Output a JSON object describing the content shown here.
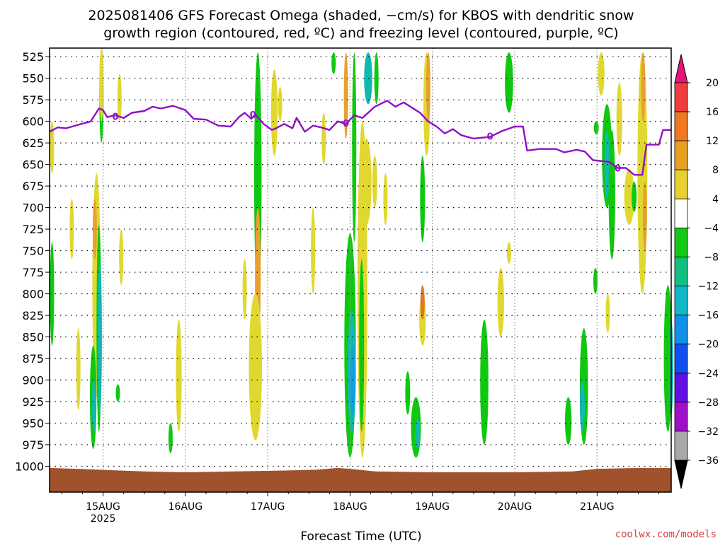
{
  "title_line1": "2025081406 GFS Forecast Omega (shaded, −cm/s) for KBOS with dendritic snow",
  "title_line2": "growth region (contoured, red, ºC) and freezing level (contoured, purple, ºC)",
  "credit": "coolwx.com/models",
  "chart_data": {
    "type": "heatmap",
    "title": "2025081406 GFS Forecast Omega (shaded, −cm/s) for KBOS with dendritic snow growth region (contoured, red, ºC) and freezing level (contoured, purple, ºC)",
    "xlabel": "Forecast Time (UTC)",
    "ylabel": "",
    "x_range_days_since_15AUG": [
      -0.65,
      6.9
    ],
    "x_ticks": [
      {
        "day": 0,
        "label": "15AUG",
        "sub": "2025"
      },
      {
        "day": 1,
        "label": "16AUG",
        "sub": ""
      },
      {
        "day": 2,
        "label": "17AUG",
        "sub": ""
      },
      {
        "day": 3,
        "label": "18AUG",
        "sub": ""
      },
      {
        "day": 4,
        "label": "19AUG",
        "sub": ""
      },
      {
        "day": 5,
        "label": "20AUG",
        "sub": ""
      },
      {
        "day": 6,
        "label": "21AUG",
        "sub": ""
      }
    ],
    "y_axis": "pressure (hPa), inverted",
    "y_range": [
      1030,
      515
    ],
    "y_ticks": [
      525,
      550,
      575,
      600,
      625,
      650,
      675,
      700,
      725,
      750,
      775,
      800,
      825,
      850,
      875,
      900,
      925,
      950,
      975,
      1000
    ],
    "grid": true,
    "colorbar": {
      "labels": [
        20,
        16,
        12,
        8,
        4,
        -4,
        -8,
        -12,
        -16,
        -20,
        -24,
        -28,
        -32,
        -36
      ],
      "colors": [
        "#e8144a",
        "#f03c3c",
        "#f07820",
        "#e8a020",
        "#e8d030",
        "#e8e030",
        "#ffffff",
        "#14c814",
        "#10c050",
        "#10c0a0",
        "#10b8d0",
        "#1088f0",
        "#1040f0",
        "#5010e0",
        "#8010d0",
        "#a010c8",
        "#a8a8a8"
      ],
      "top_arrow": "#e8147a",
      "bottom_arrow": "#000000"
    },
    "freezing_level": {
      "label": "0",
      "color": "#9010c8",
      "points": [
        [
          -0.65,
          612
        ],
        [
          -0.55,
          607
        ],
        [
          -0.45,
          608
        ],
        [
          -0.3,
          604
        ],
        [
          -0.15,
          600
        ],
        [
          -0.05,
          585
        ],
        [
          0.0,
          587
        ],
        [
          0.05,
          595
        ],
        [
          0.15,
          593
        ],
        [
          0.25,
          596
        ],
        [
          0.35,
          590
        ],
        [
          0.5,
          588
        ],
        [
          0.6,
          583
        ],
        [
          0.7,
          585
        ],
        [
          0.85,
          582
        ],
        [
          1.0,
          587
        ],
        [
          1.1,
          597
        ],
        [
          1.25,
          598
        ],
        [
          1.4,
          605
        ],
        [
          1.55,
          606
        ],
        [
          1.65,
          595
        ],
        [
          1.72,
          590
        ],
        [
          1.8,
          597
        ],
        [
          1.85,
          592
        ],
        [
          1.95,
          603
        ],
        [
          2.05,
          610
        ],
        [
          2.1,
          608
        ],
        [
          2.2,
          603
        ],
        [
          2.3,
          608
        ],
        [
          2.35,
          596
        ],
        [
          2.45,
          612
        ],
        [
          2.55,
          605
        ],
        [
          2.65,
          607
        ],
        [
          2.75,
          610
        ],
        [
          2.85,
          600
        ],
        [
          2.95,
          603
        ],
        [
          3.05,
          593
        ],
        [
          3.15,
          596
        ],
        [
          3.3,
          583
        ],
        [
          3.45,
          576
        ],
        [
          3.55,
          583
        ],
        [
          3.65,
          578
        ],
        [
          3.85,
          590
        ],
        [
          3.95,
          600
        ],
        [
          4.05,
          606
        ],
        [
          4.15,
          614
        ],
        [
          4.25,
          609
        ],
        [
          4.35,
          616
        ],
        [
          4.5,
          620
        ],
        [
          4.7,
          618
        ],
        [
          4.85,
          611
        ],
        [
          5.0,
          606
        ],
        [
          5.1,
          606
        ],
        [
          5.15,
          634
        ],
        [
          5.3,
          632
        ],
        [
          5.5,
          632
        ],
        [
          5.6,
          636
        ],
        [
          5.75,
          633
        ],
        [
          5.85,
          635
        ],
        [
          5.95,
          645
        ],
        [
          6.15,
          647
        ],
        [
          6.25,
          654
        ],
        [
          6.35,
          654
        ],
        [
          6.45,
          662
        ],
        [
          6.55,
          662
        ],
        [
          6.6,
          627
        ],
        [
          6.75,
          627
        ],
        [
          6.8,
          610
        ],
        [
          6.9,
          610
        ]
      ]
    },
    "ground_color": "#a0522d"
  }
}
